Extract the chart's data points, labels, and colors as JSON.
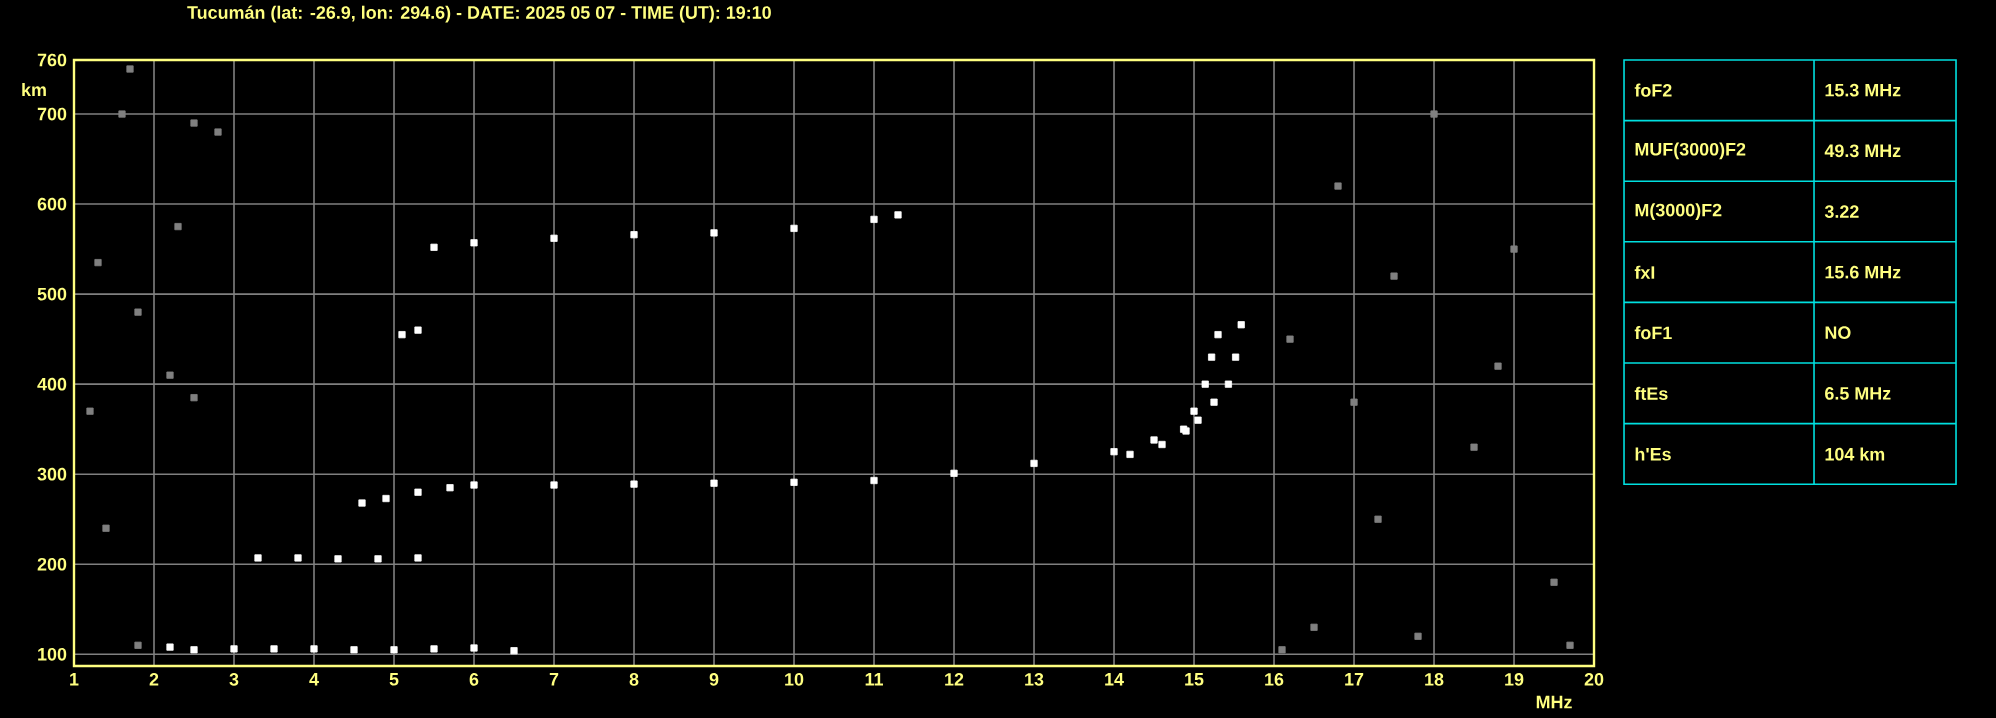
{
  "chart_data": [
    {
      "type": "scatter",
      "title": "Tucumán (lat: -26.9, lon: 294.6) - DATE: 2025 05 07 - TIME (UT): 19:10",
      "xlabel": "MHz",
      "ylabel": "km",
      "xlim": [
        1,
        20
      ],
      "ylim": [
        87,
        760
      ],
      "xticks": [
        1,
        2,
        3,
        4,
        5,
        6,
        7,
        8,
        9,
        10,
        11,
        12,
        13,
        14,
        15,
        16,
        17,
        18,
        19,
        20
      ],
      "yticks": [
        100,
        200,
        300,
        400,
        500,
        600,
        700,
        760
      ],
      "grid": true,
      "marker": "square",
      "series": [
        {
          "color": "#ffffff",
          "x": [
            4.6,
            4.9,
            5.3,
            5.7,
            6,
            7,
            8,
            9,
            10,
            11,
            12,
            13,
            14,
            14.5,
            14.87,
            15.0,
            15.14,
            15.22,
            15.3
          ],
          "values": [
            268,
            273,
            280,
            285,
            288,
            288,
            289,
            290,
            291,
            293,
            301,
            312,
            325,
            338,
            350,
            370,
            400,
            430,
            455
          ]
        },
        {
          "color": "#ffffff",
          "x": [
            14.2,
            14.6,
            14.9,
            15.05,
            15.25,
            15.43,
            15.52,
            15.59
          ],
          "values": [
            322,
            333,
            348,
            360,
            380,
            400,
            430,
            466
          ]
        },
        {
          "color": "#ffffff",
          "x": [
            2.2,
            2.5,
            3,
            3.5,
            4,
            4.5,
            5,
            5.5,
            6,
            6.5
          ],
          "values": [
            108,
            105,
            106,
            106,
            106,
            105,
            105,
            106,
            107,
            104
          ]
        },
        {
          "color": "#ffffff",
          "x": [
            3.3,
            3.8,
            4.3,
            4.8,
            5.3
          ],
          "values": [
            207,
            207,
            206,
            206,
            207
          ]
        },
        {
          "color": "#ffffff",
          "x": [
            5.5,
            6,
            7,
            8,
            9,
            10,
            11,
            11.3
          ],
          "values": [
            552,
            557,
            562,
            566,
            568,
            573,
            583,
            588
          ]
        },
        {
          "color": "#ffffff",
          "x": [
            5.1,
            5.3
          ],
          "values": [
            455,
            460
          ]
        },
        {
          "color": "#808080",
          "x": [
            1.2,
            1.3,
            1.6,
            1.7,
            1.8,
            2.3,
            2.5,
            2.8,
            1.4,
            1.8,
            2.2,
            2.5,
            16.2,
            16.5,
            17,
            17.3,
            18,
            18.5,
            19,
            19.5,
            16.8,
            17.8,
            18.8,
            19.7,
            16.1,
            17.5
          ],
          "values": [
            370,
            535,
            700,
            750,
            480,
            575,
            690,
            680,
            240,
            110,
            410,
            385,
            450,
            130,
            380,
            250,
            700,
            330,
            550,
            180,
            620,
            120,
            420,
            110,
            105,
            520
          ]
        }
      ]
    },
    {
      "type": "other",
      "annotations": [
        "foF2",
        "15.3 MHz",
        "MUF(3000)F2",
        "49.3 MHz",
        "M(3000)F2",
        "3.22",
        "fxI",
        "15.6 MHz",
        "foF1",
        "NO",
        "ftEs",
        "6.5 MHz",
        "h'Es",
        "104 km"
      ]
    }
  ]
}
